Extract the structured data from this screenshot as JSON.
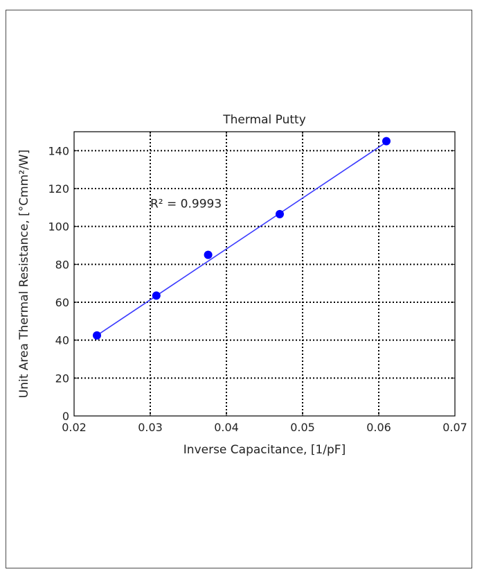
{
  "chart_data": {
    "type": "scatter",
    "title": "Thermal Putty",
    "xlabel": "Inverse Capacitance, [1/pF]",
    "ylabel": "Unit Area Thermal Resistance, [°Cmm²/W]",
    "xlim": [
      0.02,
      0.07
    ],
    "ylim": [
      0,
      150
    ],
    "x_ticks": [
      0.02,
      0.03,
      0.04,
      0.05,
      0.06,
      0.07
    ],
    "x_tick_labels": [
      "0.02",
      "0.03",
      "0.04",
      "0.05",
      "0.06",
      "0.07"
    ],
    "y_ticks": [
      0,
      20,
      40,
      60,
      80,
      100,
      120,
      140
    ],
    "y_tick_labels": [
      "0",
      "20",
      "40",
      "60",
      "80",
      "100",
      "120",
      "140"
    ],
    "grid": true,
    "series": [
      {
        "style": "points",
        "color": "#0000ff",
        "x": [
          0.023,
          0.0308,
          0.0376,
          0.047,
          0.061
        ],
        "y": [
          42.5,
          63.5,
          85,
          106.5,
          145
        ]
      },
      {
        "style": "fit-line",
        "color": "#3a3aff",
        "x": [
          0.023,
          0.061
        ],
        "y": [
          42.5,
          144.5
        ]
      }
    ],
    "annotations": [
      {
        "text": "R² = 0.9993",
        "x": 0.03,
        "y": 110
      }
    ]
  }
}
